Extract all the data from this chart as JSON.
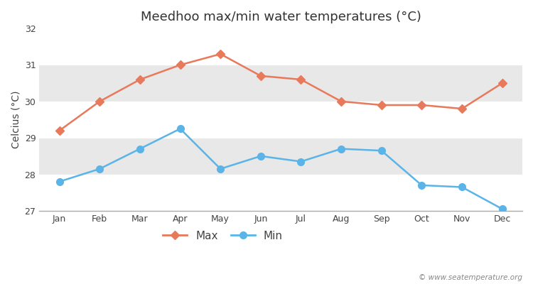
{
  "title": "Meedhoo max/min water temperatures (°C)",
  "ylabel": "Celcius (°C)",
  "watermark": "© www.seatemperature.org",
  "months": [
    "Jan",
    "Feb",
    "Mar",
    "Apr",
    "May",
    "Jun",
    "Jul",
    "Aug",
    "Sep",
    "Oct",
    "Nov",
    "Dec"
  ],
  "max_values": [
    29.2,
    30.0,
    30.6,
    31.0,
    31.3,
    30.7,
    30.6,
    30.0,
    29.9,
    29.9,
    29.8,
    30.5
  ],
  "min_values": [
    27.8,
    28.15,
    28.7,
    29.25,
    28.15,
    28.5,
    28.35,
    28.7,
    28.65,
    27.7,
    27.65,
    27.05
  ],
  "max_color": "#e8795a",
  "min_color": "#5ab4e8",
  "bg_color": "#ffffff",
  "plot_bg_color": "#ffffff",
  "band_color": "#e8e8e8",
  "ylim": [
    27,
    32
  ],
  "yticks": [
    27,
    28,
    29,
    30,
    31,
    32
  ],
  "title_fontsize": 13,
  "label_fontsize": 10,
  "tick_fontsize": 9,
  "legend_fontsize": 11,
  "marker_max": "D",
  "marker_min": "o",
  "marker_size_max": 6,
  "marker_size_min": 7,
  "linewidth": 1.8
}
